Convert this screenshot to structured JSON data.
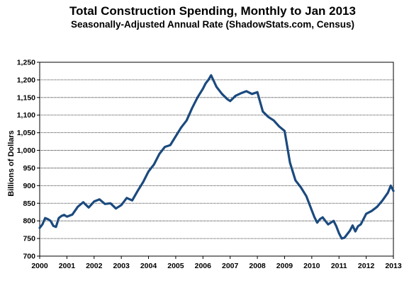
{
  "chart_data": {
    "type": "line",
    "title": "Total Construction Spending, Monthly to Jan 2013",
    "subtitle": "Seasonally-Adjusted Annual Rate (ShadowStats.com, Census)",
    "xlabel": "",
    "ylabel": "Billions of Dollars",
    "xlim": [
      2000,
      2013
    ],
    "ylim": [
      700,
      1250
    ],
    "y_ticks": [
      700,
      750,
      800,
      850,
      900,
      950,
      1000,
      1050,
      1100,
      1150,
      1200,
      1250
    ],
    "y_tick_labels": [
      "700",
      "750",
      "800",
      "850",
      "900",
      "950",
      "1,000",
      "1,050",
      "1,100",
      "1,150",
      "1,200",
      "1,250"
    ],
    "x_ticks": [
      2000,
      2001,
      2002,
      2003,
      2004,
      2005,
      2006,
      2007,
      2008,
      2009,
      2010,
      2011,
      2012,
      2013
    ],
    "x_tick_labels": [
      "2000",
      "2001",
      "2002",
      "2003",
      "2004",
      "2005",
      "2006",
      "2007",
      "2008",
      "2009",
      "2010",
      "2011",
      "2012",
      "2013"
    ],
    "grid": {
      "horizontal": true,
      "vertical": false
    },
    "line_color": "#1b4a7e",
    "series": [
      {
        "name": "",
        "x": [
          2000.0,
          2000.1,
          2000.2,
          2000.3,
          2000.4,
          2000.5,
          2000.6,
          2000.7,
          2000.8,
          2000.9,
          2001.0,
          2001.2,
          2001.4,
          2001.6,
          2001.8,
          2002.0,
          2002.2,
          2002.4,
          2002.6,
          2002.8,
          2003.0,
          2003.2,
          2003.4,
          2003.6,
          2003.8,
          2004.0,
          2004.2,
          2004.4,
          2004.6,
          2004.8,
          2005.0,
          2005.2,
          2005.4,
          2005.6,
          2005.8,
          2006.0,
          2006.1,
          2006.2,
          2006.3,
          2006.5,
          2006.7,
          2006.9,
          2007.0,
          2007.2,
          2007.4,
          2007.6,
          2007.8,
          2008.0,
          2008.2,
          2008.4,
          2008.6,
          2008.8,
          2009.0,
          2009.2,
          2009.4,
          2009.6,
          2009.8,
          2010.0,
          2010.1,
          2010.2,
          2010.3,
          2010.4,
          2010.5,
          2010.6,
          2010.7,
          2010.8,
          2010.9,
          2011.0,
          2011.1,
          2011.2,
          2011.3,
          2011.4,
          2011.5,
          2011.6,
          2011.7,
          2011.8,
          2011.9,
          2012.0,
          2012.2,
          2012.4,
          2012.6,
          2012.8,
          2012.9,
          2013.0
        ],
        "values": [
          780,
          790,
          808,
          805,
          800,
          786,
          783,
          808,
          814,
          817,
          812,
          818,
          840,
          853,
          838,
          855,
          861,
          848,
          850,
          835,
          845,
          865,
          858,
          885,
          910,
          940,
          960,
          990,
          1010,
          1015,
          1040,
          1065,
          1085,
          1120,
          1150,
          1175,
          1190,
          1200,
          1213,
          1180,
          1160,
          1145,
          1140,
          1155,
          1162,
          1168,
          1160,
          1165,
          1110,
          1095,
          1085,
          1068,
          1055,
          965,
          915,
          895,
          870,
          830,
          810,
          795,
          805,
          810,
          800,
          790,
          795,
          800,
          785,
          765,
          750,
          752,
          762,
          772,
          787,
          770,
          785,
          790,
          805,
          820,
          828,
          840,
          858,
          880,
          900,
          885
        ]
      }
    ]
  }
}
